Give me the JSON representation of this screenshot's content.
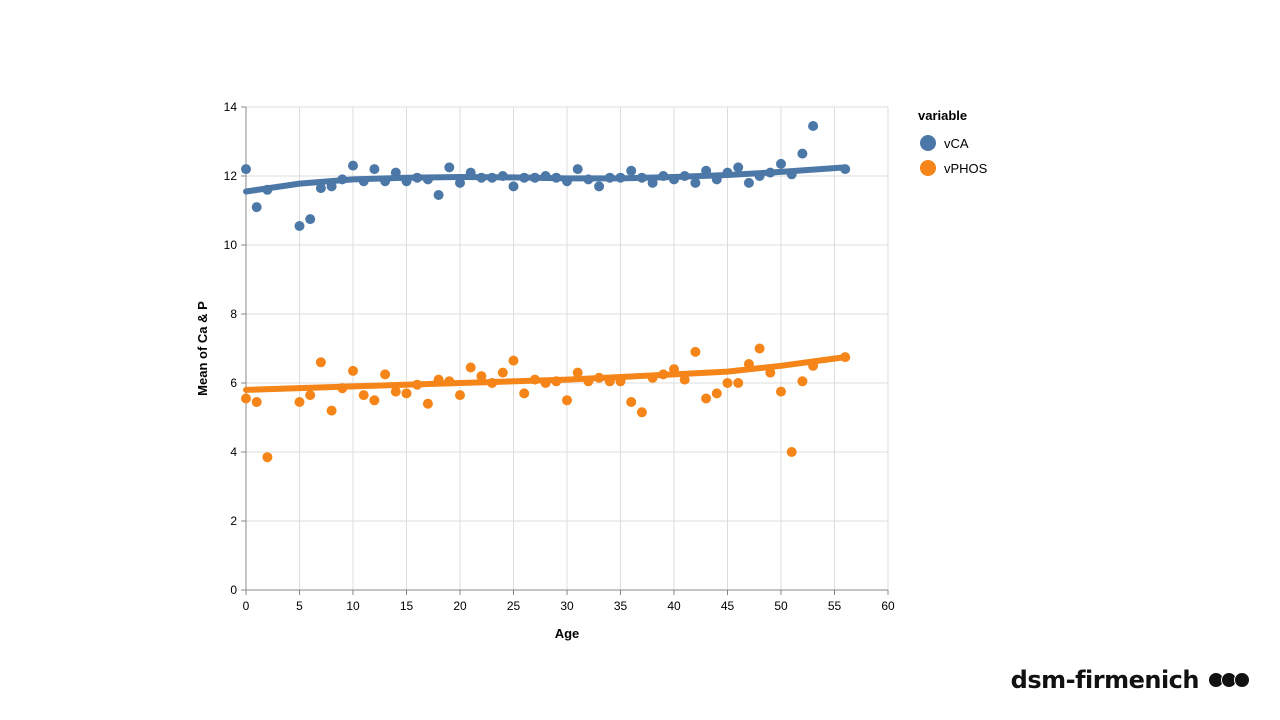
{
  "chart_data": {
    "type": "scatter",
    "xlabel": "Age",
    "ylabel": "Mean of  Ca & P",
    "xlim": [
      0,
      60
    ],
    "ylim": [
      0,
      14
    ],
    "x_ticks": [
      0,
      5,
      10,
      15,
      20,
      25,
      30,
      35,
      40,
      45,
      50,
      55,
      60
    ],
    "y_ticks": [
      0,
      2,
      4,
      6,
      8,
      10,
      12,
      14
    ],
    "grid": true,
    "legend": {
      "title": "variable",
      "position": "right"
    },
    "trend_lines": true,
    "series": [
      {
        "name": "vCA",
        "color": "#4c78a8",
        "points": [
          [
            0,
            12.2
          ],
          [
            1,
            11.1
          ],
          [
            2,
            11.6
          ],
          [
            5,
            10.55
          ],
          [
            6,
            10.75
          ],
          [
            7,
            11.65
          ],
          [
            8,
            11.7
          ],
          [
            9,
            11.9
          ],
          [
            10,
            12.3
          ],
          [
            11,
            11.85
          ],
          [
            12,
            12.2
          ],
          [
            13,
            11.85
          ],
          [
            14,
            12.1
          ],
          [
            15,
            11.85
          ],
          [
            16,
            11.95
          ],
          [
            17,
            11.9
          ],
          [
            18,
            11.45
          ],
          [
            19,
            12.25
          ],
          [
            20,
            11.8
          ],
          [
            21,
            12.1
          ],
          [
            22,
            11.95
          ],
          [
            23,
            11.95
          ],
          [
            24,
            12.0
          ],
          [
            25,
            11.7
          ],
          [
            26,
            11.95
          ],
          [
            27,
            11.95
          ],
          [
            28,
            12.0
          ],
          [
            29,
            11.95
          ],
          [
            30,
            11.85
          ],
          [
            31,
            12.2
          ],
          [
            32,
            11.9
          ],
          [
            33,
            11.7
          ],
          [
            34,
            11.95
          ],
          [
            35,
            11.95
          ],
          [
            36,
            12.15
          ],
          [
            37,
            11.95
          ],
          [
            38,
            11.8
          ],
          [
            39,
            12.0
          ],
          [
            40,
            11.9
          ],
          [
            41,
            12.0
          ],
          [
            42,
            11.8
          ],
          [
            43,
            12.15
          ],
          [
            44,
            11.9
          ],
          [
            45,
            12.1
          ],
          [
            46,
            12.25
          ],
          [
            47,
            11.8
          ],
          [
            48,
            12.0
          ],
          [
            49,
            12.1
          ],
          [
            50,
            12.35
          ],
          [
            51,
            12.05
          ],
          [
            52,
            12.65
          ],
          [
            53,
            13.45
          ],
          [
            56,
            12.2
          ]
        ],
        "trend": [
          [
            0,
            11.55
          ],
          [
            5,
            11.78
          ],
          [
            10,
            11.9
          ],
          [
            15,
            11.95
          ],
          [
            20,
            11.97
          ],
          [
            25,
            11.96
          ],
          [
            30,
            11.93
          ],
          [
            35,
            11.93
          ],
          [
            40,
            11.97
          ],
          [
            45,
            12.03
          ],
          [
            50,
            12.12
          ],
          [
            56,
            12.25
          ]
        ]
      },
      {
        "name": "vPHOS",
        "color": "#f58518",
        "points": [
          [
            0,
            5.55
          ],
          [
            1,
            5.45
          ],
          [
            2,
            3.85
          ],
          [
            5,
            5.45
          ],
          [
            6,
            5.65
          ],
          [
            7,
            6.6
          ],
          [
            8,
            5.2
          ],
          [
            9,
            5.85
          ],
          [
            10,
            6.35
          ],
          [
            11,
            5.65
          ],
          [
            12,
            5.5
          ],
          [
            13,
            6.25
          ],
          [
            14,
            5.75
          ],
          [
            15,
            5.7
          ],
          [
            16,
            5.95
          ],
          [
            17,
            5.4
          ],
          [
            18,
            6.1
          ],
          [
            19,
            6.05
          ],
          [
            20,
            5.65
          ],
          [
            21,
            6.45
          ],
          [
            22,
            6.2
          ],
          [
            23,
            6.0
          ],
          [
            24,
            6.3
          ],
          [
            25,
            6.65
          ],
          [
            26,
            5.7
          ],
          [
            27,
            6.1
          ],
          [
            28,
            6.0
          ],
          [
            29,
            6.05
          ],
          [
            30,
            5.5
          ],
          [
            31,
            6.3
          ],
          [
            32,
            6.05
          ],
          [
            33,
            6.15
          ],
          [
            34,
            6.05
          ],
          [
            35,
            6.05
          ],
          [
            36,
            5.45
          ],
          [
            37,
            5.15
          ],
          [
            38,
            6.15
          ],
          [
            39,
            6.25
          ],
          [
            40,
            6.4
          ],
          [
            41,
            6.1
          ],
          [
            42,
            6.9
          ],
          [
            43,
            5.55
          ],
          [
            44,
            5.7
          ],
          [
            45,
            6.0
          ],
          [
            46,
            6.0
          ],
          [
            47,
            6.55
          ],
          [
            48,
            7.0
          ],
          [
            49,
            6.3
          ],
          [
            50,
            5.75
          ],
          [
            51,
            4.0
          ],
          [
            52,
            6.05
          ],
          [
            53,
            6.5
          ],
          [
            56,
            6.75
          ]
        ],
        "trend": [
          [
            0,
            5.8
          ],
          [
            10,
            5.9
          ],
          [
            20,
            6.0
          ],
          [
            30,
            6.1
          ],
          [
            40,
            6.25
          ],
          [
            45,
            6.33
          ],
          [
            50,
            6.5
          ],
          [
            56,
            6.75
          ]
        ]
      }
    ]
  },
  "brand": {
    "name": "dsm-firmenich"
  }
}
